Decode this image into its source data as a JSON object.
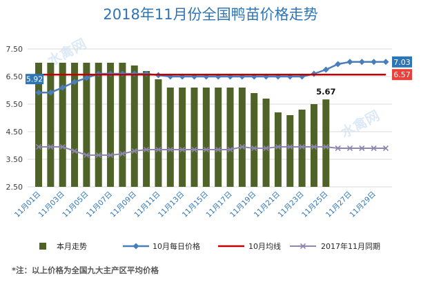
{
  "chart_data": {
    "type": "bar",
    "title": "2018年11月份全国鸭苗价格走势",
    "ylim": [
      2.5,
      7.5
    ],
    "y_ticks": [
      "2.50",
      "3.50",
      "4.50",
      "5.50",
      "6.50",
      "7.50"
    ],
    "x_tick_labels": [
      "11月01日",
      "11月03日",
      "11月05日",
      "11月07日",
      "11月09日",
      "11月11日",
      "11月13日",
      "11月15日",
      "11月17日",
      "11月19日",
      "11月21日",
      "11月23日",
      "11月25日",
      "11月27日",
      "11月29日"
    ],
    "grid": true,
    "legend_position": "bottom",
    "series": [
      {
        "name": "本月走势",
        "type": "bar",
        "color": "#4f6228",
        "values": [
          7.0,
          7.0,
          7.0,
          7.0,
          7.0,
          7.0,
          7.0,
          7.0,
          6.9,
          6.7,
          6.4,
          6.1,
          6.1,
          6.1,
          6.1,
          6.1,
          6.1,
          6.1,
          5.9,
          5.7,
          5.2,
          5.1,
          5.3,
          5.5,
          5.67
        ],
        "end_label": "5.67"
      },
      {
        "name": "10月每日价格",
        "type": "line",
        "marker": "diamond",
        "color": "#4a7ebb",
        "label_fill": "#2e75b6",
        "values": [
          5.92,
          5.92,
          6.1,
          6.3,
          6.45,
          6.6,
          6.6,
          6.6,
          6.6,
          6.6,
          6.55,
          6.5,
          6.5,
          6.5,
          6.5,
          6.5,
          6.5,
          6.5,
          6.5,
          6.5,
          6.5,
          6.5,
          6.5,
          6.6,
          6.75,
          6.95,
          7.03,
          7.03,
          7.03,
          7.03
        ],
        "start_label": "5.92",
        "end_label": "7.03"
      },
      {
        "name": "10月均线",
        "type": "line",
        "marker": "none",
        "color": "#c00000",
        "label_fill": "#e8413b",
        "values": [
          6.57,
          6.57,
          6.57,
          6.57,
          6.57,
          6.57,
          6.57,
          6.57,
          6.57,
          6.57,
          6.57,
          6.57,
          6.57,
          6.57,
          6.57,
          6.57,
          6.57,
          6.57,
          6.57,
          6.57,
          6.57,
          6.57,
          6.57,
          6.57,
          6.57,
          6.57,
          6.57,
          6.57,
          6.57,
          6.57
        ],
        "end_label": "6.57"
      },
      {
        "name": "2017年11月同期",
        "type": "line",
        "marker": "x",
        "color": "#8e86ae",
        "values": [
          3.95,
          3.95,
          3.95,
          3.8,
          3.65,
          3.65,
          3.65,
          3.7,
          3.8,
          3.85,
          3.85,
          3.85,
          3.85,
          3.85,
          3.85,
          3.85,
          3.85,
          3.95,
          3.9,
          3.9,
          3.95,
          3.95,
          3.95,
          3.95,
          3.95,
          3.9,
          3.9,
          3.9,
          3.9,
          3.9
        ]
      }
    ]
  },
  "footnote": "*注：以上价格为全国九大主产区平均价格",
  "watermark": "水禽网"
}
